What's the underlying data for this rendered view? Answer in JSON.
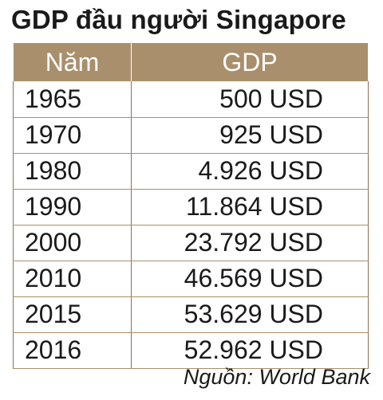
{
  "title": "GDP đầu người Singapore",
  "headers": {
    "year": "Năm",
    "gdp": "GDP"
  },
  "rows": [
    {
      "year": "1965",
      "gdp": "500 USD"
    },
    {
      "year": "1970",
      "gdp": "925 USD"
    },
    {
      "year": "1980",
      "gdp": "4.926 USD"
    },
    {
      "year": "1990",
      "gdp": "11.864 USD"
    },
    {
      "year": "2000",
      "gdp": "23.792 USD"
    },
    {
      "year": "2010",
      "gdp": "46.569 USD"
    },
    {
      "year": "2015",
      "gdp": "53.629 USD"
    },
    {
      "year": "2016",
      "gdp": "52.962 USD"
    }
  ],
  "source": "Nguồn: World Bank",
  "colors": {
    "header_bg": "#a98f6c",
    "grid": "#a98f6c"
  },
  "chart_data": {
    "type": "table",
    "title": "GDP đầu người Singapore",
    "columns": [
      "Năm",
      "GDP"
    ],
    "categories": [
      "1965",
      "1970",
      "1980",
      "1990",
      "2000",
      "2010",
      "2015",
      "2016"
    ],
    "values": [
      500,
      925,
      4926,
      11864,
      23792,
      46569,
      53629,
      52962
    ],
    "unit": "USD",
    "grid": true
  }
}
